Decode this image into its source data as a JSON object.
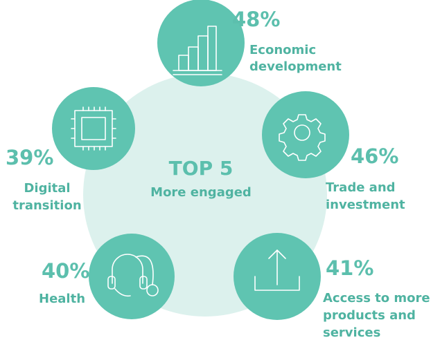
{
  "title": "TOP 5",
  "subtitle": "More engaged",
  "items": [
    {
      "percent": "48%",
      "label": [
        "Economic",
        "development"
      ]
    },
    {
      "percent": "46%",
      "label": [
        "Trade and",
        "investment"
      ]
    },
    {
      "percent": "41%",
      "label": [
        "Access to more",
        "products and",
        "services"
      ]
    },
    {
      "percent": "40%",
      "label": [
        "Health"
      ]
    },
    {
      "percent": "39%",
      "label": [
        "Digital",
        "transition"
      ]
    }
  ]
}
